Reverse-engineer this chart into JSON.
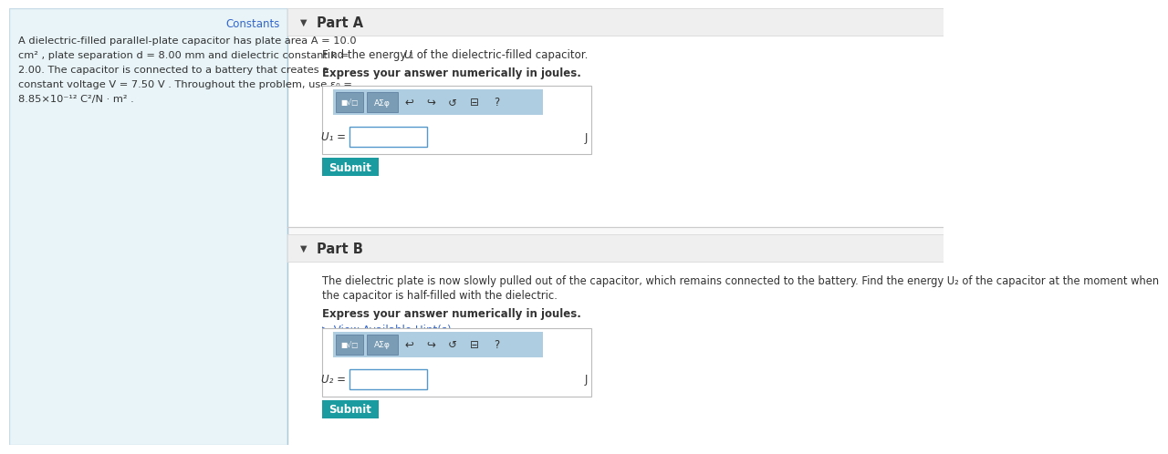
{
  "bg_color": "#ffffff",
  "left_panel_bg": "#e8f4f8",
  "left_panel_border": "#c8dce8",
  "constants_link_color": "#3366cc",
  "constants_link_text": "Constants",
  "divider_color": "#cccccc",
  "part_a_title": "Part A",
  "part_b_title": "Part B",
  "bold_text": "Express your answer numerically in joules.",
  "hint_link_text": "▶ View Available Hint(s)",
  "hint_color": "#3366cc",
  "toolbar_bg": "#aecde0",
  "toolbar_btn_bg": "#7a9db5",
  "submit_btn_bg": "#1a9ba0",
  "submit_btn_text_color": "#ffffff",
  "submit_text": "Submit",
  "input_border": "#5599cc",
  "u1_label": "U₁ =",
  "u2_label": "U₂ =",
  "unit_j": "J",
  "problem_lines": [
    "A dielectric-filled parallel-plate capacitor has plate area A = 10.0",
    "cm² , plate separation d = 8.00 mm and dielectric constant k =",
    "2.00. The capacitor is connected to a battery that creates a",
    "constant voltage V = 7.50 V . Throughout the problem, use ε₀ =",
    "8.85×10⁻¹² C²/N · m² ."
  ],
  "part_b_line1": "The dielectric plate is now slowly pulled out of the capacitor, which remains connected to the battery. Find the energy U₂ of the capacitor at the moment when",
  "part_b_line2": "the capacitor is half-filled with the dielectric."
}
